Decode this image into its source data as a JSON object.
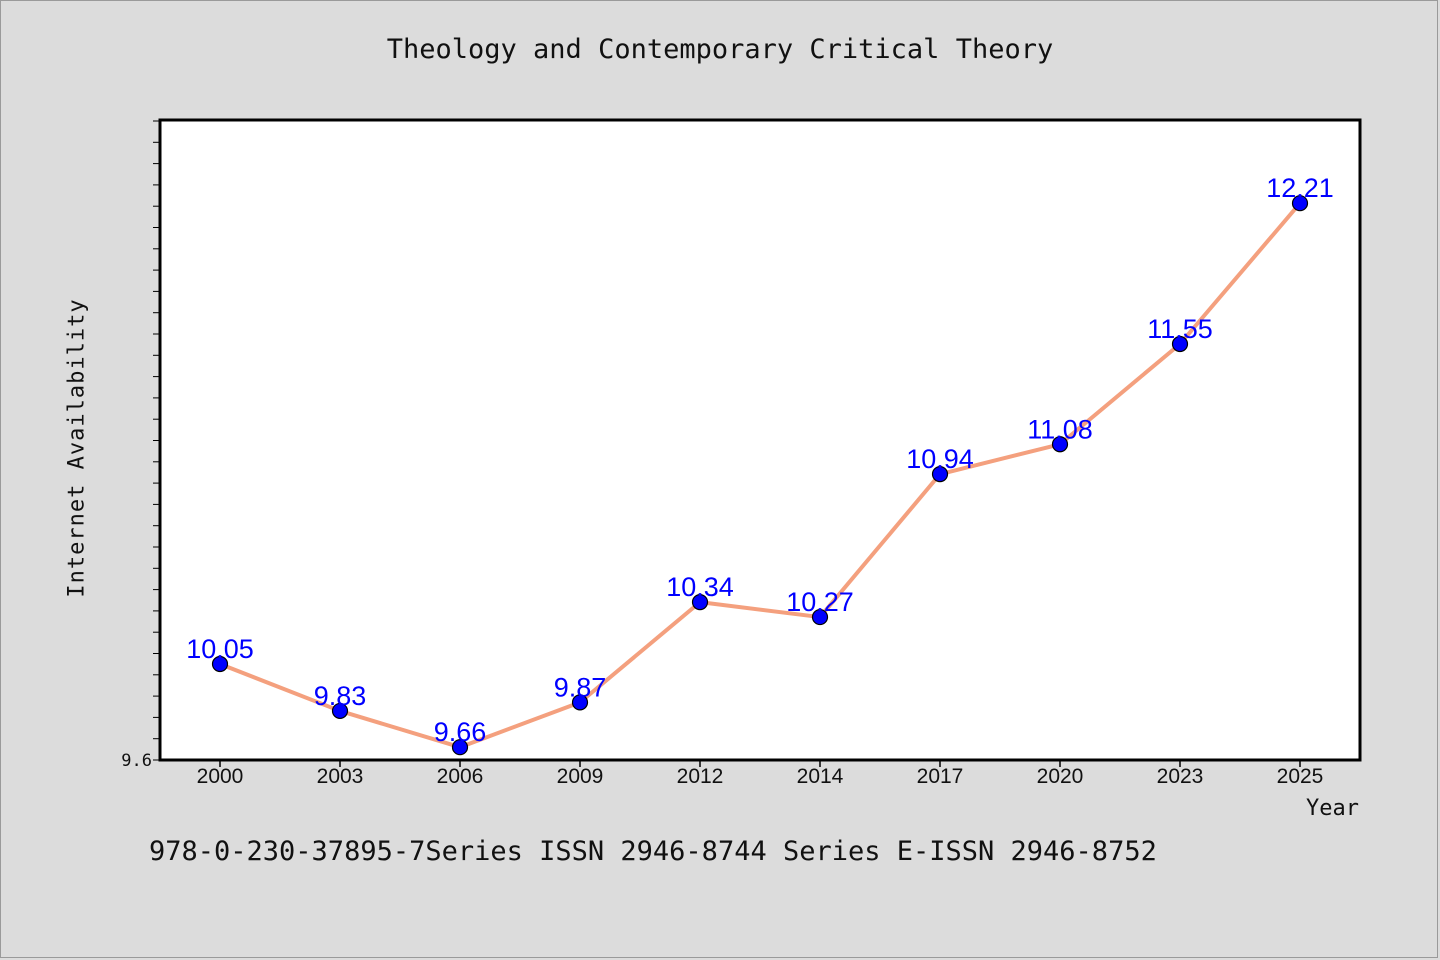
{
  "chart_data": {
    "type": "line",
    "title": "Theology and Contemporary Critical Theory",
    "xlabel": "Year",
    "ylabel": "Internet Availability",
    "categories": [
      "2000",
      "2003",
      "2006",
      "2009",
      "2012",
      "2014",
      "2017",
      "2020",
      "2023",
      "2025"
    ],
    "series": [
      {
        "values": [
          10.05,
          9.83,
          9.66,
          9.87,
          10.34,
          10.27,
          10.94,
          11.08,
          11.55,
          12.21
        ]
      }
    ],
    "value_labels": [
      "10.05",
      "9.83",
      "9.66",
      "9.87",
      "10.34",
      "10.27",
      "10.94",
      "11.08",
      "11.55",
      "12.21"
    ],
    "ylim": [
      9.6,
      12.6
    ],
    "y_tick_label": "9.6",
    "grid": false,
    "colors": {
      "line": "#f4a07e",
      "marker": "#0000ff",
      "value_label": "#0000ff",
      "plot_bg": "#ffffff",
      "page_bg": "#dcdcdc"
    }
  },
  "footer": "978-0-230-37895-7Series ISSN 2946-8744 Series E-ISSN 2946-8752"
}
